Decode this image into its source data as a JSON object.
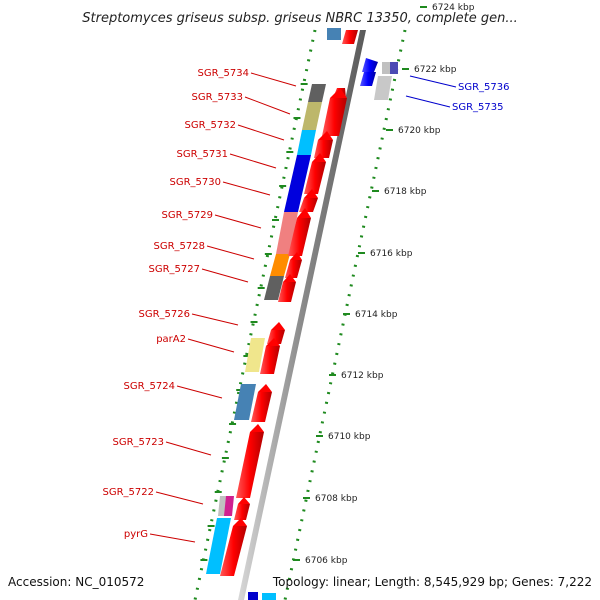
{
  "title": "Streptomyces griseus subsp. griseus NBRC 13350, complete gen...",
  "footer": {
    "accession": "Accession: NC_010572",
    "topology": "Topology: linear; Length: 8,545,929 bp; Genes: 7,222"
  },
  "scale_ticks": [
    "6724 kbp",
    "6722 kbp",
    "6720 kbp",
    "6718 kbp",
    "6716 kbp",
    "6714 kbp",
    "6712 kbp",
    "6710 kbp",
    "6708 kbp",
    "6706 kbp"
  ],
  "genes_left": [
    {
      "label": "SGR_5734",
      "color": "#cc0000"
    },
    {
      "label": "SGR_5733",
      "color": "#cc0000"
    },
    {
      "label": "SGR_5732",
      "color": "#cc0000"
    },
    {
      "label": "SGR_5731",
      "color": "#cc0000"
    },
    {
      "label": "SGR_5730",
      "color": "#cc0000"
    },
    {
      "label": "SGR_5729",
      "color": "#cc0000"
    },
    {
      "label": "SGR_5728",
      "color": "#cc0000"
    },
    {
      "label": "SGR_5727",
      "color": "#cc0000"
    },
    {
      "label": "SGR_5726",
      "color": "#cc0000"
    },
    {
      "label": "parA2",
      "color": "#cc0000"
    },
    {
      "label": "SGR_5724",
      "color": "#cc0000"
    },
    {
      "label": "SGR_5723",
      "color": "#cc0000"
    },
    {
      "label": "SGR_5722",
      "color": "#cc0000"
    },
    {
      "label": "pyrG",
      "color": "#cc0000"
    }
  ],
  "genes_right": [
    {
      "label": "SGR_5736",
      "color": "#0000cc"
    },
    {
      "label": "SGR_5735",
      "color": "#0000cc"
    }
  ],
  "colors": {
    "forward_arrow": "#ff0000",
    "reverse_arrow": "#0000ff",
    "backbone": "#999999",
    "dots": "#228b22"
  }
}
